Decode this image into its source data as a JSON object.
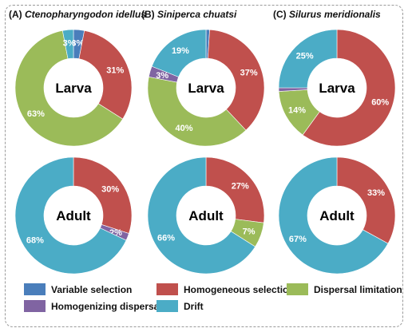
{
  "chart_data": {
    "type": "pie",
    "variant": "donut",
    "categories": [
      "Variable selection",
      "Homogeneous selection",
      "Dispersal limitation",
      "Homogenizing dispersal",
      "Drift"
    ],
    "colors": {
      "Variable selection": "#4A7EBB",
      "Homogeneous selection": "#C0504D",
      "Dispersal limitation": "#9BBB59",
      "Homogenizing dispersal": "#8064A2",
      "Drift": "#4BACC6"
    },
    "legend_position": "bottom",
    "panels": [
      {
        "label": "(A)",
        "species": "Ctenopharyngodon idellus",
        "donuts": [
          {
            "center_label": "Larva",
            "slices": [
              {
                "category": "Variable selection",
                "value": 3,
                "label": "3%"
              },
              {
                "category": "Homogeneous selection",
                "value": 31,
                "label": "31%"
              },
              {
                "category": "Dispersal limitation",
                "value": 63,
                "label": "63%"
              },
              {
                "category": "Drift",
                "value": 3,
                "label": "3%"
              }
            ]
          },
          {
            "center_label": "Adult",
            "slices": [
              {
                "category": "Homogeneous selection",
                "value": 30,
                "label": "30%"
              },
              {
                "category": "Homogenizing dispersal",
                "value": 2,
                "label": "2%"
              },
              {
                "category": "Drift",
                "value": 68,
                "label": "68%"
              }
            ]
          }
        ]
      },
      {
        "label": "(B)",
        "species": "Siniperca chuatsi",
        "donuts": [
          {
            "center_label": "Larva",
            "slices": [
              {
                "category": "Variable selection",
                "value": 1,
                "label": ""
              },
              {
                "category": "Homogeneous selection",
                "value": 37,
                "label": "37%"
              },
              {
                "category": "Dispersal limitation",
                "value": 40,
                "label": "40%"
              },
              {
                "category": "Homogenizing dispersal",
                "value": 3,
                "label": "3%"
              },
              {
                "category": "Drift",
                "value": 19,
                "label": "19%"
              }
            ]
          },
          {
            "center_label": "Adult",
            "slices": [
              {
                "category": "Homogeneous selection",
                "value": 27,
                "label": "27%"
              },
              {
                "category": "Dispersal limitation",
                "value": 7,
                "label": "7%"
              },
              {
                "category": "Drift",
                "value": 66,
                "label": "66%"
              }
            ]
          }
        ]
      },
      {
        "label": "(C)",
        "species": "Silurus meridionalis",
        "donuts": [
          {
            "center_label": "Larva",
            "slices": [
              {
                "category": "Homogeneous selection",
                "value": 60,
                "label": "60%"
              },
              {
                "category": "Dispersal limitation",
                "value": 14,
                "label": "14%"
              },
              {
                "category": "Homogenizing dispersal",
                "value": 1,
                "label": ""
              },
              {
                "category": "Drift",
                "value": 25,
                "label": "25%"
              }
            ]
          },
          {
            "center_label": "Adult",
            "slices": [
              {
                "category": "Homogeneous selection",
                "value": 33,
                "label": "33%"
              },
              {
                "category": "Drift",
                "value": 67,
                "label": "67%"
              }
            ]
          }
        ]
      }
    ]
  }
}
